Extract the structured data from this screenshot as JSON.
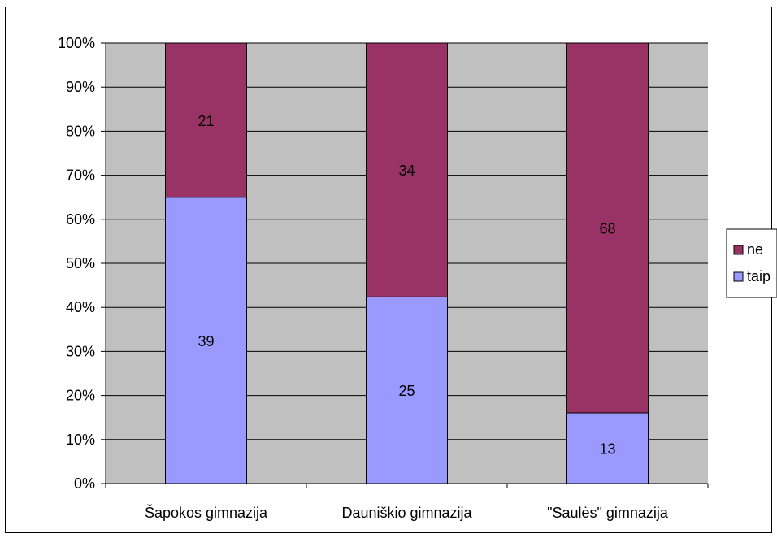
{
  "chart_data": {
    "type": "bar",
    "stacking": "percent",
    "categories": [
      "Šapokos gimnazija",
      "Dauniškio gimnazija",
      "\"Saulės\" gimnazija"
    ],
    "series": [
      {
        "name": "taip",
        "values": [
          39,
          25,
          13
        ],
        "color": "#9999ff"
      },
      {
        "name": "ne",
        "values": [
          21,
          34,
          68
        ],
        "color": "#993366"
      }
    ],
    "ytick_labels": [
      "0%",
      "10%",
      "20%",
      "30%",
      "40%",
      "50%",
      "60%",
      "70%",
      "80%",
      "90%",
      "100%"
    ],
    "ylim": [
      0,
      100
    ],
    "grid": true,
    "plot_background": "#c0c0c0",
    "legend_position": "right",
    "legend_order": [
      "ne",
      "taip"
    ]
  }
}
